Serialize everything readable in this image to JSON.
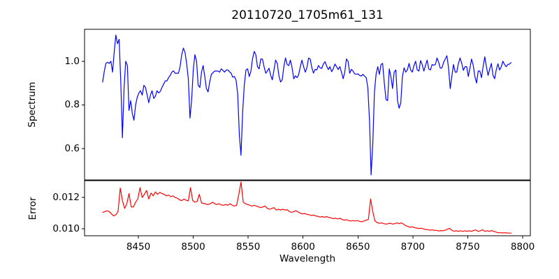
{
  "chart_data": [
    {
      "name": "spectrum",
      "type": "line",
      "panel": "top",
      "title": "20110720_1705m61_131",
      "ylabel": "Spectrum",
      "line_color": "#0000ff",
      "grid": false,
      "legend": null,
      "xlim": [
        8401,
        8807
      ],
      "ylim": [
        0.457,
        1.146
      ],
      "x_start": 8417.5,
      "x_step": 1.5,
      "y_ticks": {
        "values": [
          1.0,
          0.8,
          0.6
        ],
        "labels": [
          "1.0",
          "0.8",
          "0.6"
        ]
      },
      "y": [
        0.905,
        0.955,
        0.99,
        0.995,
        0.99,
        1.0,
        0.95,
        1.04,
        1.12,
        1.08,
        1.1,
        0.9,
        0.65,
        0.88,
        1.0,
        0.98,
        0.775,
        0.82,
        0.76,
        0.73,
        0.8,
        0.835,
        0.855,
        0.865,
        0.845,
        0.89,
        0.88,
        0.845,
        0.81,
        0.845,
        0.865,
        0.83,
        0.84,
        0.865,
        0.855,
        0.862,
        0.88,
        0.895,
        0.91,
        0.91,
        0.925,
        0.935,
        0.95,
        0.956,
        0.945,
        0.945,
        0.945,
        0.975,
        1.03,
        1.06,
        1.04,
        0.99,
        0.92,
        0.74,
        0.82,
        0.96,
        1.03,
        1.0,
        0.89,
        0.88,
        0.95,
        0.98,
        0.93,
        0.875,
        0.86,
        0.905,
        0.94,
        0.948,
        0.955,
        0.955,
        0.955,
        0.95,
        0.965,
        0.958,
        0.95,
        0.96,
        0.96,
        0.952,
        0.945,
        0.927,
        0.93,
        0.912,
        0.85,
        0.66,
        0.57,
        0.77,
        0.89,
        0.96,
        0.965,
        0.93,
        0.955,
        1.01,
        1.045,
        1.03,
        0.975,
        0.965,
        1.01,
        1.01,
        0.975,
        0.945,
        0.955,
        0.968,
        0.935,
        0.915,
        0.96,
        1.005,
        0.99,
        0.935,
        0.905,
        0.915,
        0.975,
        1.015,
        0.985,
        0.98,
        1.005,
        0.97,
        0.92,
        0.933,
        0.925,
        0.938,
        0.975,
        1.005,
        0.975,
        0.95,
        0.97,
        1.015,
        1.01,
        0.97,
        0.946,
        0.963,
        0.96,
        0.98,
        0.97,
        0.967,
        0.987,
        0.998,
        0.978,
        0.962,
        0.975,
        0.952,
        0.965,
        0.987,
        0.975,
        0.962,
        0.975,
        0.95,
        0.92,
        0.95,
        1.01,
        1.0,
        0.945,
        0.963,
        0.955,
        0.942,
        0.941,
        0.942,
        0.935,
        0.932,
        0.94,
        0.932,
        0.925,
        0.88,
        0.73,
        0.48,
        0.62,
        0.86,
        0.94,
        0.975,
        0.94,
        0.985,
        0.99,
        0.9,
        0.825,
        0.82,
        0.965,
        0.93,
        0.875,
        0.95,
        0.96,
        0.82,
        0.785,
        0.81,
        0.93,
        0.97,
        0.95,
        0.96,
        0.99,
        0.96,
        0.95,
        0.98,
        1.0,
        0.96,
        0.955,
        1.003,
        0.985,
        0.955,
        0.98,
        1.005,
        0.965,
        0.96,
        0.985,
        0.982,
        0.985,
        1.015,
        0.995,
        0.968,
        0.97,
        0.995,
        1.01,
        1.025,
        0.97,
        0.875,
        0.93,
        0.985,
        0.95,
        0.95,
        0.99,
        1.015,
        0.99,
        0.958,
        0.975,
        0.975,
        0.93,
        0.97,
        1.01,
        0.98,
        0.93,
        0.9,
        0.955,
        0.955,
        0.925,
        0.975,
        1.02,
        0.975,
        0.935,
        0.965,
        0.99,
        0.935,
        0.92,
        0.962,
        0.988,
        0.96,
        0.975,
        1.0,
        0.985,
        0.975,
        0.985,
        0.987,
        0.994
      ]
    },
    {
      "name": "error",
      "type": "line",
      "panel": "bottom",
      "ylabel": "Error",
      "xlabel": "Wavelength",
      "line_color": "#ff0000",
      "grid": false,
      "legend": null,
      "xlim": [
        8401,
        8807
      ],
      "ylim": [
        0.00956,
        0.01307
      ],
      "x_start": 8417.5,
      "x_step": 2.0,
      "x_ticks": {
        "values": [
          8450,
          8500,
          8550,
          8600,
          8650,
          8700,
          8750,
          8800
        ],
        "labels": [
          "8450",
          "8500",
          "8550",
          "8600",
          "8650",
          "8700",
          "8750",
          "8800"
        ]
      },
      "y_ticks": {
        "values": [
          0.012,
          0.01
        ],
        "labels": [
          "0.012",
          "0.010"
        ]
      },
      "y": [
        0.01105,
        0.0111,
        0.01115,
        0.0111,
        0.01095,
        0.01082,
        0.0109,
        0.0111,
        0.0126,
        0.0118,
        0.0113,
        0.0116,
        0.01225,
        0.0114,
        0.0114,
        0.0117,
        0.0119,
        0.01262,
        0.012,
        0.0122,
        0.01245,
        0.0119,
        0.01228,
        0.0121,
        0.01235,
        0.0122,
        0.01232,
        0.01225,
        0.0122,
        0.0121,
        0.01215,
        0.01205,
        0.0121,
        0.012,
        0.01195,
        0.01185,
        0.0118,
        0.0119,
        0.01182,
        0.01178,
        0.01262,
        0.0118,
        0.0117,
        0.01175,
        0.0122,
        0.01165,
        0.01162,
        0.01158,
        0.01155,
        0.0116,
        0.0117,
        0.0116,
        0.01155,
        0.0116,
        0.01152,
        0.0115,
        0.01155,
        0.0115,
        0.0116,
        0.0115,
        0.01145,
        0.0115,
        0.0122,
        0.01298,
        0.0117,
        0.0116,
        0.01155,
        0.0115,
        0.01145,
        0.0115,
        0.01145,
        0.0114,
        0.01135,
        0.0114,
        0.01145,
        0.0113,
        0.01125,
        0.0113,
        0.01135,
        0.0112,
        0.01125,
        0.0112,
        0.01125,
        0.0112,
        0.01122,
        0.0111,
        0.01105,
        0.0111,
        0.01115,
        0.01108,
        0.011,
        0.01095,
        0.01098,
        0.01092,
        0.0109,
        0.01085,
        0.01088,
        0.01082,
        0.0108,
        0.01075,
        0.01078,
        0.01074,
        0.01078,
        0.01072,
        0.0107,
        0.01065,
        0.01068,
        0.01063,
        0.01068,
        0.0106,
        0.01055,
        0.01058,
        0.01053,
        0.0105,
        0.01053,
        0.0105,
        0.01053,
        0.01048,
        0.01045,
        0.0105,
        0.01055,
        0.0106,
        0.0119,
        0.0111,
        0.0105,
        0.0104,
        0.01035,
        0.01038,
        0.01033,
        0.0103,
        0.01033,
        0.01036,
        0.0103,
        0.01033,
        0.01038,
        0.01033,
        0.01038,
        0.0103,
        0.0102,
        0.01015,
        0.0101,
        0.01013,
        0.01008,
        0.01005,
        0.01002,
        0.01004,
        0.01,
        0.00996,
        0.00995,
        0.00991,
        0.00994,
        0.0099,
        0.0099,
        0.00986,
        0.00989,
        0.00988,
        0.00992,
        0.00998,
        0.01003,
        0.0099,
        0.00985,
        0.00988,
        0.00984,
        0.00988,
        0.00984,
        0.00988,
        0.00984,
        0.00988,
        0.00984,
        0.0099,
        0.00993,
        0.00984,
        0.00988,
        0.00994,
        0.00984,
        0.00988,
        0.00984,
        0.00989,
        0.00984,
        0.0098,
        0.00975,
        0.00975,
        0.00974,
        0.00975,
        0.00974,
        0.00973,
        0.00973
      ]
    }
  ],
  "colors": {
    "background": "#ffffff",
    "axes": "#000000",
    "text": "#000000",
    "spectrum_line": "#0000ff",
    "error_line": "#ff0000"
  }
}
